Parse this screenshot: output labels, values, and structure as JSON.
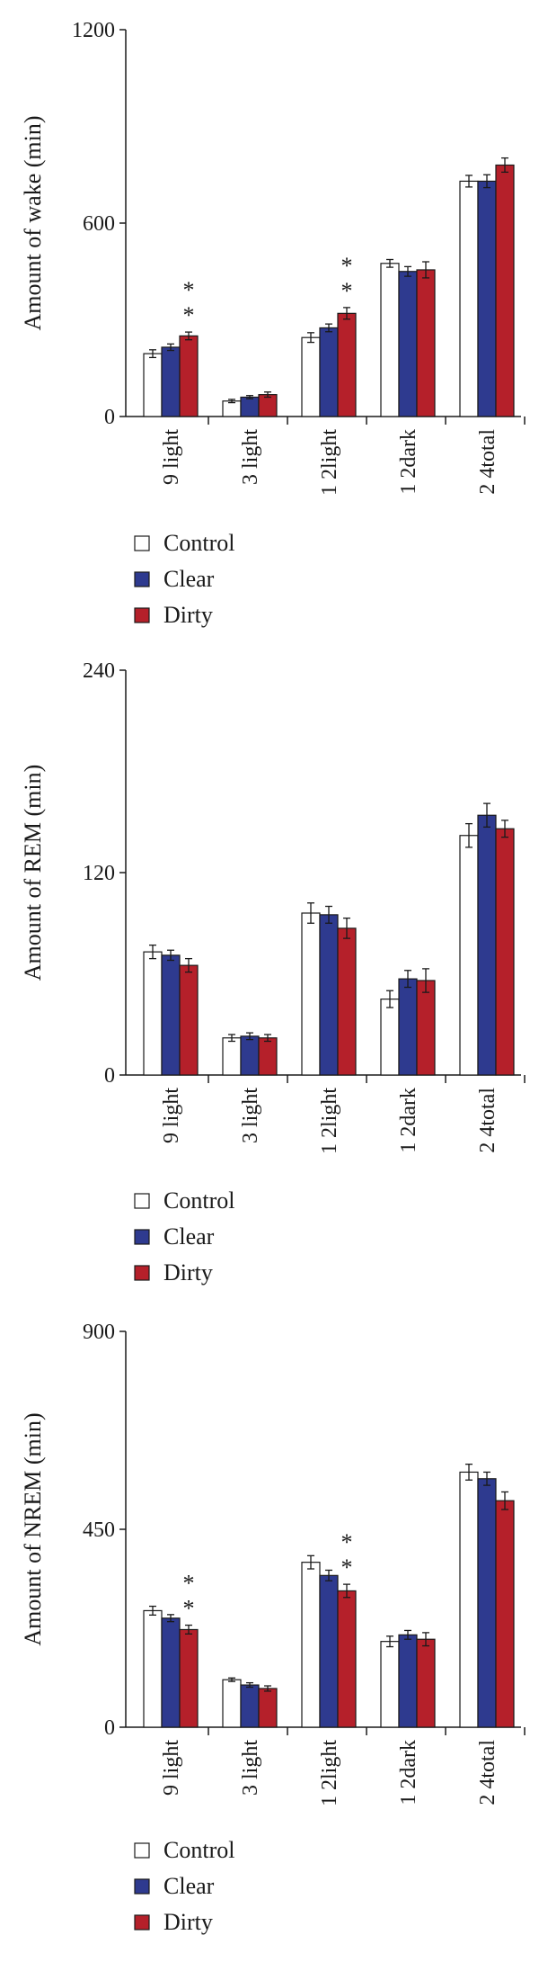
{
  "colors": {
    "Control": "#ffffff",
    "Clear": "#2e3a8f",
    "Dirty": "#b5202a",
    "axis": "#1a1a1a"
  },
  "chart_data": [
    {
      "type": "bar",
      "ylabel": "Amount of wake (min)",
      "ylim": [
        0,
        1200
      ],
      "yticks": [
        0,
        600,
        1200
      ],
      "categories": [
        "9 light",
        "3 light",
        "1 2light",
        "1 2dark",
        "2 4total"
      ],
      "series": [
        {
          "name": "Control",
          "values": [
            195,
            48,
            245,
            475,
            730
          ],
          "errors": [
            12,
            5,
            15,
            12,
            18
          ]
        },
        {
          "name": "Clear",
          "values": [
            215,
            60,
            275,
            450,
            730
          ],
          "errors": [
            10,
            5,
            12,
            15,
            20
          ]
        },
        {
          "name": "Dirty",
          "values": [
            250,
            68,
            320,
            455,
            780
          ],
          "errors": [
            12,
            8,
            18,
            25,
            22
          ]
        }
      ],
      "annotations": [
        {
          "category": "9 light",
          "series": "Dirty",
          "text": "*"
        },
        {
          "category": "9 light",
          "series": "Dirty",
          "text": "*"
        },
        {
          "category": "1 2light",
          "series": "Dirty",
          "text": "*"
        },
        {
          "category": "1 2light",
          "series": "Dirty",
          "text": "*"
        }
      ],
      "legend": [
        "Control",
        "Clear",
        "Dirty"
      ],
      "legend_position": "bottom-left"
    },
    {
      "type": "bar",
      "ylabel": "Amount of REM (min)",
      "ylim": [
        0,
        240
      ],
      "yticks": [
        0,
        120,
        240
      ],
      "categories": [
        "9 light",
        "3 light",
        "1 2light",
        "1 2dark",
        "2 4total"
      ],
      "series": [
        {
          "name": "Control",
          "values": [
            73,
            22,
            96,
            45,
            142
          ],
          "errors": [
            4,
            2,
            6,
            5,
            7
          ]
        },
        {
          "name": "Clear",
          "values": [
            71,
            23,
            95,
            57,
            154
          ],
          "errors": [
            3,
            2,
            5,
            5,
            7
          ]
        },
        {
          "name": "Dirty",
          "values": [
            65,
            22,
            87,
            56,
            146
          ],
          "errors": [
            4,
            2,
            6,
            7,
            5
          ]
        }
      ],
      "annotations": [],
      "legend": [
        "Control",
        "Clear",
        "Dirty"
      ],
      "legend_position": "bottom-left"
    },
    {
      "type": "bar",
      "ylabel": "Amount of NREM (min)",
      "ylim": [
        0,
        900
      ],
      "yticks": [
        0,
        450,
        900
      ],
      "categories": [
        "9 light",
        "3 light",
        "1 2light",
        "1 2dark",
        "2 4total"
      ],
      "series": [
        {
          "name": "Control",
          "values": [
            265,
            108,
            375,
            195,
            580
          ],
          "errors": [
            10,
            4,
            15,
            12,
            18
          ]
        },
        {
          "name": "Clear",
          "values": [
            248,
            96,
            345,
            210,
            565
          ],
          "errors": [
            8,
            5,
            12,
            10,
            15
          ]
        },
        {
          "name": "Dirty",
          "values": [
            222,
            88,
            310,
            200,
            515
          ],
          "errors": [
            10,
            6,
            15,
            15,
            20
          ]
        }
      ],
      "annotations": [
        {
          "category": "9 light",
          "series": "Dirty",
          "text": "*"
        },
        {
          "category": "9 light",
          "series": "Dirty",
          "text": "*"
        },
        {
          "category": "1 2light",
          "series": "Dirty",
          "text": "*"
        },
        {
          "category": "1 2light",
          "series": "Dirty",
          "text": "*"
        }
      ],
      "legend": [
        "Control",
        "Clear",
        "Dirty"
      ],
      "legend_position": "bottom-left"
    }
  ]
}
